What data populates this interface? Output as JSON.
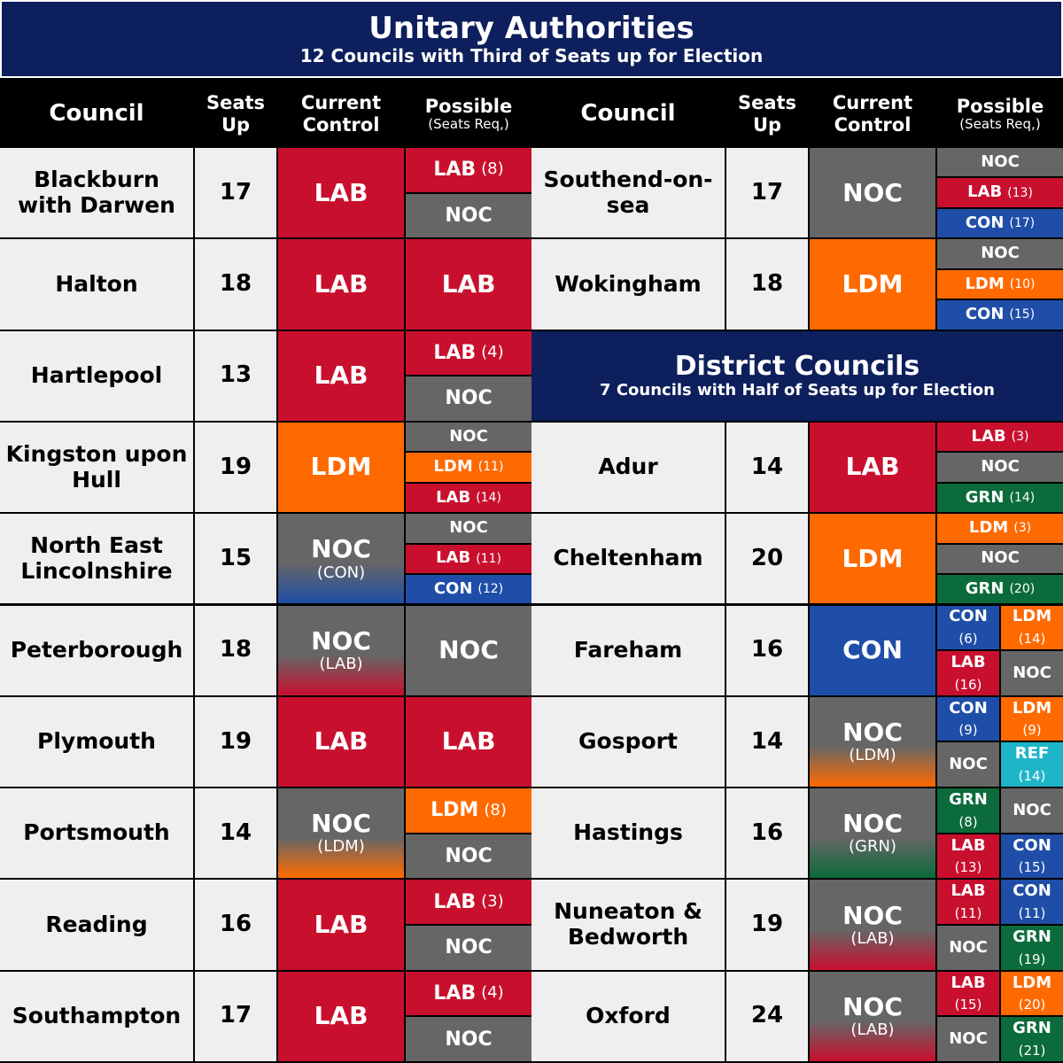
{
  "header": {
    "title": "Unitary Authorities",
    "subtitle": "12 Councils with Third of Seats up for Election"
  },
  "columns": [
    {
      "main": "Council"
    },
    {
      "main": "Seats Up"
    },
    {
      "main": "Current Control"
    },
    {
      "main": "Possible",
      "sub": "(Seats Req,)"
    }
  ],
  "party_colors": {
    "LAB": "#c8102e",
    "NOC": "#666666",
    "LDM": "#ff6a00",
    "CON": "#1f4ea8",
    "GRN": "#0b6b3a",
    "REF": "#1fb5c9"
  },
  "unitary": {
    "councils": [
      {
        "council": "Blackburn with Darwen",
        "seats": 17,
        "control": "LAB",
        "possible": [
          {
            "party": "LAB",
            "seats": "(8)"
          },
          {
            "party": "NOC"
          }
        ]
      },
      {
        "council": "Halton",
        "seats": 18,
        "control": "LAB",
        "possible": [
          {
            "party": "LAB"
          }
        ]
      },
      {
        "council": "Hartlepool",
        "seats": 13,
        "control": "LAB",
        "possible": [
          {
            "party": "LAB",
            "seats": "(4)"
          },
          {
            "party": "NOC"
          }
        ]
      },
      {
        "council": "Kingston upon Hull",
        "seats": 19,
        "control": "LDM",
        "possible": [
          {
            "party": "NOC"
          },
          {
            "party": "LDM",
            "seats": "(11)"
          },
          {
            "party": "LAB",
            "seats": "(14)"
          }
        ]
      },
      {
        "council": "North East Lincolnshire",
        "seats": 15,
        "control": "NOC",
        "control_sub": "(CON)",
        "possible": [
          {
            "party": "NOC"
          },
          {
            "party": "LAB",
            "seats": "(11)"
          },
          {
            "party": "CON",
            "seats": "(12)"
          }
        ]
      },
      {
        "council": "Peterborough",
        "seats": 18,
        "control": "NOC",
        "control_sub": "(LAB)",
        "possible": [
          {
            "party": "NOC"
          }
        ]
      },
      {
        "council": "Plymouth",
        "seats": 19,
        "control": "LAB",
        "possible": [
          {
            "party": "LAB"
          }
        ]
      },
      {
        "council": "Portsmouth",
        "seats": 14,
        "control": "NOC",
        "control_sub": "(LDM)",
        "possible": [
          {
            "party": "LDM",
            "seats": "(8)"
          },
          {
            "party": "NOC"
          }
        ]
      },
      {
        "council": "Reading",
        "seats": 16,
        "control": "LAB",
        "possible": [
          {
            "party": "LAB",
            "seats": "(3)"
          },
          {
            "party": "NOC"
          }
        ]
      },
      {
        "council": "Southampton",
        "seats": 17,
        "control": "LAB",
        "possible": [
          {
            "party": "LAB",
            "seats": "(4)"
          },
          {
            "party": "NOC"
          }
        ]
      },
      {
        "council": "Southend-on-sea",
        "seats": 17,
        "control": "NOC",
        "possible": [
          {
            "party": "NOC"
          },
          {
            "party": "LAB",
            "seats": "(13)"
          },
          {
            "party": "CON",
            "seats": "(17)"
          }
        ]
      },
      {
        "council": "Wokingham",
        "seats": 18,
        "control": "LDM",
        "possible": [
          {
            "party": "NOC"
          },
          {
            "party": "LDM",
            "seats": "(10)"
          },
          {
            "party": "CON",
            "seats": "(15)"
          }
        ]
      }
    ]
  },
  "district": {
    "title": "District Councils",
    "subtitle": "7 Councils with Half of Seats up for Election",
    "councils": [
      {
        "council": "Adur",
        "seats": 14,
        "control": "LAB",
        "possible": [
          {
            "party": "LAB",
            "seats": "(3)"
          },
          {
            "party": "NOC"
          },
          {
            "party": "GRN",
            "seats": "(14)"
          }
        ]
      },
      {
        "council": "Cheltenham",
        "seats": 20,
        "control": "LDM",
        "possible": [
          {
            "party": "LDM",
            "seats": "(3)"
          },
          {
            "party": "NOC"
          },
          {
            "party": "GRN",
            "seats": "(20)"
          }
        ]
      },
      {
        "council": "Fareham",
        "seats": 16,
        "control": "CON",
        "possible": [
          {
            "party": "CON",
            "seats": "(6)"
          },
          {
            "party": "LDM",
            "seats": "(14)"
          },
          {
            "party": "LAB",
            "seats": "(16)"
          },
          {
            "party": "NOC"
          }
        ]
      },
      {
        "council": "Gosport",
        "seats": 14,
        "control": "NOC",
        "control_sub": "(LDM)",
        "possible": [
          {
            "party": "CON",
            "seats": "(9)"
          },
          {
            "party": "LDM",
            "seats": "(9)"
          },
          {
            "party": "NOC"
          },
          {
            "party": "REF",
            "seats": "(14)"
          }
        ]
      },
      {
        "council": "Hastings",
        "seats": 16,
        "control": "NOC",
        "control_sub": "(GRN)",
        "possible": [
          {
            "party": "GRN",
            "seats": "(8)"
          },
          {
            "party": "NOC"
          },
          {
            "party": "LAB",
            "seats": "(13)"
          },
          {
            "party": "CON",
            "seats": "(15)"
          }
        ]
      },
      {
        "council": "Nuneaton & Bedworth",
        "seats": 19,
        "control": "NOC",
        "control_sub": "(LAB)",
        "possible": [
          {
            "party": "LAB",
            "seats": "(11)"
          },
          {
            "party": "CON",
            "seats": "(11)"
          },
          {
            "party": "NOC"
          },
          {
            "party": "GRN",
            "seats": "(19)"
          }
        ]
      },
      {
        "council": "Oxford",
        "seats": 24,
        "control": "NOC",
        "control_sub": "(LAB)",
        "possible": [
          {
            "party": "LAB",
            "seats": "(15)"
          },
          {
            "party": "LDM",
            "seats": "(20)"
          },
          {
            "party": "NOC"
          },
          {
            "party": "GRN",
            "seats": "(21)"
          }
        ]
      }
    ]
  }
}
